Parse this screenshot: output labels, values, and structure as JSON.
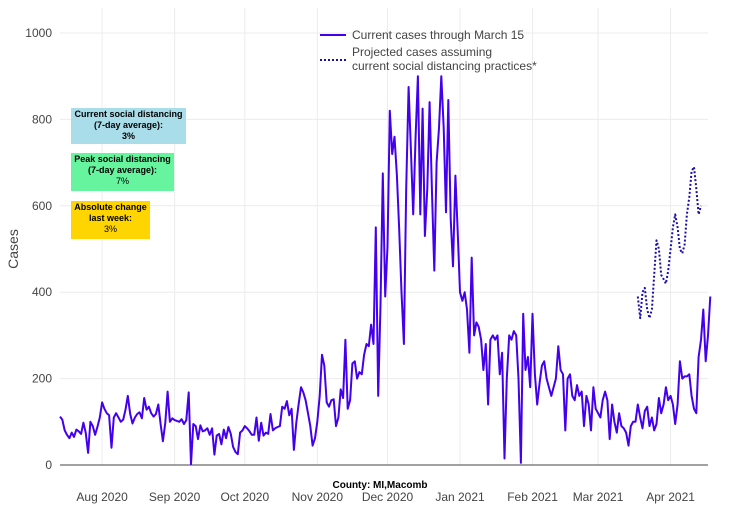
{
  "chart_data": {
    "type": "line",
    "title": "",
    "xlabel": "County: MI,Macomb",
    "ylabel": "Cases",
    "ylim": [
      0,
      1000
    ],
    "yticks": [
      0,
      200,
      400,
      600,
      800,
      1000
    ],
    "xticks": [
      {
        "label": "Aug 2020",
        "day": 18
      },
      {
        "label": "Sep 2020",
        "day": 49
      },
      {
        "label": "Oct 2020",
        "day": 79
      },
      {
        "label": "Nov 2020",
        "day": 110
      },
      {
        "label": "Dec 2020",
        "day": 140
      },
      {
        "label": "Jan 2021",
        "day": 171
      },
      {
        "label": "Feb 2021",
        "day": 202
      },
      {
        "label": "Mar 2021",
        "day": 230
      },
      {
        "label": "Apr 2021",
        "day": 261
      }
    ],
    "x_start": "2020-07-14",
    "series": [
      {
        "name": "Current cases through March 15",
        "color": "#4400ee",
        "style": "solid",
        "start_day": 0,
        "values": [
          112,
          105,
          80,
          70,
          62,
          75,
          65,
          82,
          78,
          72,
          98,
          75,
          28,
          100,
          90,
          70,
          88,
          110,
          145,
          130,
          120,
          115,
          40,
          110,
          120,
          110,
          100,
          105,
          128,
          160,
          118,
          96,
          110,
          118,
          122,
          108,
          155,
          128,
          135,
          120,
          112,
          118,
          140,
          95,
          55,
          98,
          170,
          100,
          108,
          104,
          102,
          100,
          106,
          95,
          104,
          168,
          2,
          95,
          90,
          60,
          92,
          78,
          80,
          85,
          70,
          85,
          24,
          68,
          72,
          48,
          82,
          62,
          88,
          72,
          42,
          30,
          25,
          75,
          80,
          90,
          85,
          78,
          70,
          70,
          110,
          56,
          98,
          68,
          75,
          72,
          118,
          80,
          85,
          88,
          90,
          135,
          130,
          148,
          115,
          130,
          35,
          98,
          140,
          180,
          168,
          150,
          120,
          90,
          45,
          62,
          100,
          160,
          255,
          230,
          145,
          135,
          150,
          152,
          90,
          110,
          175,
          155,
          290,
          130,
          150,
          235,
          240,
          200,
          215,
          210,
          255,
          280,
          275,
          325,
          280,
          550,
          160,
          370,
          675,
          390,
          505,
          820,
          720,
          760,
          670,
          545,
          400,
          280,
          640,
          875,
          730,
          580,
          760,
          900,
          580,
          825,
          530,
          640,
          840,
          630,
          450,
          700,
          780,
          900,
          780,
          585,
          845,
          570,
          460,
          670,
          540,
          400,
          380,
          400,
          360,
          260,
          480,
          300,
          330,
          320,
          290,
          220,
          280,
          140,
          290,
          300,
          290,
          300,
          210,
          260,
          15,
          200,
          300,
          290,
          310,
          300,
          200,
          5,
          350,
          220,
          250,
          180,
          350,
          210,
          140,
          190,
          230,
          240,
          200,
          180,
          160,
          180,
          200,
          275,
          220,
          210,
          80,
          200,
          210,
          160,
          150,
          185,
          160,
          170,
          90,
          160,
          140,
          80,
          180,
          130,
          120,
          110,
          150,
          170,
          150,
          60,
          140,
          100,
          75,
          120,
          90,
          85,
          75,
          45,
          90,
          100,
          100,
          140,
          110,
          85,
          125,
          135,
          90,
          110,
          80,
          95,
          155,
          120,
          140,
          180,
          150,
          160,
          140,
          95,
          140,
          240,
          200,
          205,
          205,
          210,
          160,
          130,
          120,
          250,
          290,
          360,
          240,
          300,
          390
        ]
      },
      {
        "name": "Projected cases assuming current social distancing practices*",
        "color": "#1a0fa8",
        "style": "dotted",
        "start_day": 247,
        "values": [
          390,
          340,
          400,
          410,
          360,
          340,
          360,
          440,
          520,
          500,
          440,
          430,
          420,
          450,
          500,
          550,
          580,
          550,
          500,
          490,
          510,
          580,
          620,
          680,
          690,
          640,
          580,
          600
        ]
      }
    ],
    "legend": {
      "position": "top-center",
      "entries": [
        {
          "label": "Current cases through March 15"
        },
        {
          "label_lines": [
            "Projected cases assuming",
            "current social distancing practices*"
          ]
        }
      ]
    },
    "annotations": [
      {
        "title_lines": [
          "Current social distancing",
          "(7-day average):"
        ],
        "value": "3%",
        "value_bold": true,
        "color": "#a9dde9"
      },
      {
        "title_lines": [
          "Peak social distancing",
          "(7-day average):"
        ],
        "value": "7%",
        "value_bold": false,
        "color": "#66f49e"
      },
      {
        "title_lines": [
          "Absolute change",
          "last week:"
        ],
        "value": "3%",
        "value_bold": false,
        "color": "#ffd500"
      }
    ]
  }
}
